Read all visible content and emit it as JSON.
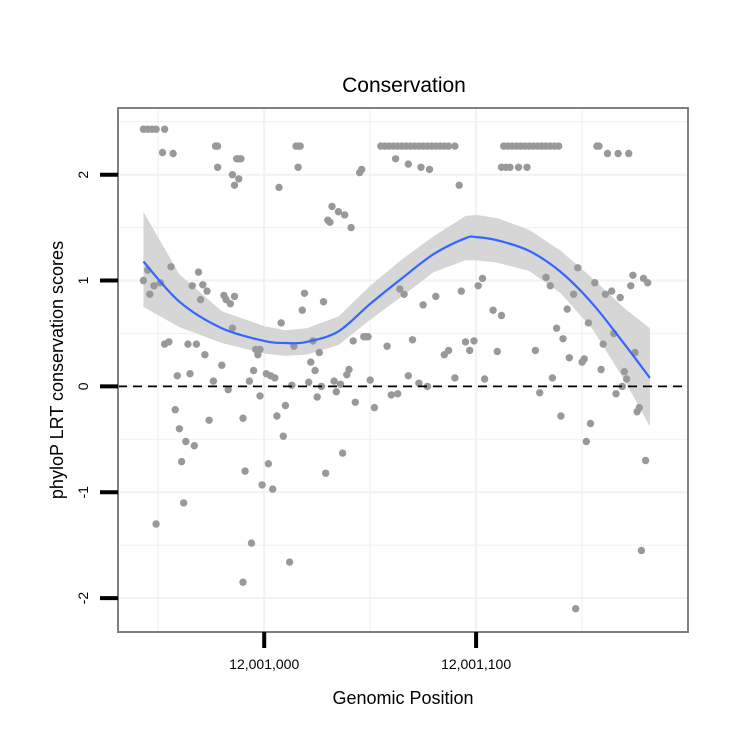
{
  "chart_data": {
    "type": "scatter",
    "title": "Conservation",
    "xlabel": "Genomic Position",
    "ylabel": "phyloP LRT conservation scores",
    "xlim": [
      12000931,
      12001200
    ],
    "ylim": [
      -2.32,
      2.63
    ],
    "x_ticks": [
      {
        "value": 12001000,
        "label": "12,001,000"
      },
      {
        "value": 12001100,
        "label": "12,001,100"
      }
    ],
    "y_ticks": [
      {
        "value": -2,
        "label": "-2"
      },
      {
        "value": -1,
        "label": "-1"
      },
      {
        "value": 0,
        "label": "0"
      },
      {
        "value": 1,
        "label": "1"
      },
      {
        "value": 2,
        "label": "2"
      }
    ],
    "grid": true,
    "reference_line": {
      "y": 0,
      "style": "dashed"
    },
    "colors": {
      "points": "#999999",
      "smooth_line": "#3366FF",
      "ribbon": "#d2d2d2",
      "panel_border": "#808080",
      "grid": "#f2f2f2"
    },
    "smooth": {
      "x": [
        12000943,
        12000960,
        12000980,
        12001000,
        12001010,
        12001020,
        12001035,
        12001050,
        12001065,
        12001080,
        12001095,
        12001100,
        12001110,
        12001125,
        12001140,
        12001155,
        12001170,
        12001182
      ],
      "y": [
        1.18,
        0.8,
        0.55,
        0.43,
        0.41,
        0.42,
        0.52,
        0.78,
        1.02,
        1.25,
        1.4,
        1.41,
        1.38,
        1.28,
        1.08,
        0.78,
        0.4,
        0.08
      ],
      "lower": [
        0.75,
        0.56,
        0.41,
        0.31,
        0.29,
        0.3,
        0.39,
        0.63,
        0.85,
        1.08,
        1.19,
        1.19,
        1.17,
        1.09,
        0.88,
        0.54,
        0.06,
        -0.38
      ],
      "upper": [
        1.65,
        1.06,
        0.71,
        0.57,
        0.53,
        0.55,
        0.66,
        0.95,
        1.2,
        1.42,
        1.61,
        1.62,
        1.59,
        1.48,
        1.28,
        1.02,
        0.74,
        0.55
      ]
    },
    "points": [
      [
        12000943,
        2.43
      ],
      [
        12000945,
        2.43
      ],
      [
        12000947,
        2.43
      ],
      [
        12000949,
        2.43
      ],
      [
        12000953,
        2.43
      ],
      [
        12000952,
        2.21
      ],
      [
        12000957,
        2.2
      ],
      [
        12000943,
        1.0
      ],
      [
        12000945,
        1.1
      ],
      [
        12000946,
        0.87
      ],
      [
        12000948,
        0.95
      ],
      [
        12000951,
        0.98
      ],
      [
        12000953,
        0.4
      ],
      [
        12000955,
        0.42
      ],
      [
        12000956,
        1.13
      ],
      [
        12000958,
        -0.22
      ],
      [
        12000959,
        0.1
      ],
      [
        12000960,
        -0.4
      ],
      [
        12000961,
        -0.71
      ],
      [
        12000962,
        -1.1
      ],
      [
        12000963,
        -0.52
      ],
      [
        12000949,
        -1.3
      ],
      [
        12000964,
        0.4
      ],
      [
        12000965,
        0.12
      ],
      [
        12000966,
        0.95
      ],
      [
        12000967,
        -0.56
      ],
      [
        12000968,
        0.4
      ],
      [
        12000969,
        1.08
      ],
      [
        12000970,
        0.82
      ],
      [
        12000971,
        0.96
      ],
      [
        12000972,
        0.3
      ],
      [
        12000973,
        0.9
      ],
      [
        12000974,
        -0.32
      ],
      [
        12000976,
        0.05
      ],
      [
        12000977,
        2.27
      ],
      [
        12000978,
        2.27
      ],
      [
        12000978,
        2.07
      ],
      [
        12000980,
        0.2
      ],
      [
        12000981,
        0.86
      ],
      [
        12000982,
        0.82
      ],
      [
        12000983,
        -0.03
      ],
      [
        12000984,
        0.78
      ],
      [
        12000985,
        0.55
      ],
      [
        12000986,
        0.85
      ],
      [
        12000987,
        2.15
      ],
      [
        12000988,
        2.15
      ],
      [
        12000989,
        2.15
      ],
      [
        12000985,
        2.0
      ],
      [
        12000986,
        1.9
      ],
      [
        12000988,
        1.96
      ],
      [
        12000990,
        -0.3
      ],
      [
        12000990,
        -1.85
      ],
      [
        12000991,
        -0.8
      ],
      [
        12000993,
        0.05
      ],
      [
        12000994,
        -1.48
      ],
      [
        12000995,
        0.15
      ],
      [
        12000996,
        0.35
      ],
      [
        12000997,
        0.3
      ],
      [
        12000998,
        -0.09
      ],
      [
        12000998,
        0.35
      ],
      [
        12000999,
        -0.93
      ],
      [
        12001001,
        0.12
      ],
      [
        12001002,
        -0.73
      ],
      [
        12001003,
        0.1
      ],
      [
        12001004,
        -0.97
      ],
      [
        12001005,
        0.08
      ],
      [
        12001006,
        -0.28
      ],
      [
        12001007,
        1.88
      ],
      [
        12001008,
        0.6
      ],
      [
        12001009,
        -0.47
      ],
      [
        12001010,
        -0.18
      ],
      [
        12001012,
        -1.66
      ],
      [
        12001013,
        0.01
      ],
      [
        12001014,
        0.38
      ],
      [
        12001015,
        2.27
      ],
      [
        12001016,
        2.27
      ],
      [
        12001017,
        2.27
      ],
      [
        12001016,
        2.07
      ],
      [
        12001018,
        0.72
      ],
      [
        12001019,
        0.88
      ],
      [
        12001021,
        0.04
      ],
      [
        12001022,
        0.23
      ],
      [
        12001023,
        0.43
      ],
      [
        12001024,
        0.15
      ],
      [
        12001025,
        -0.1
      ],
      [
        12001026,
        0.32
      ],
      [
        12001027,
        0.0
      ],
      [
        12001028,
        0.8
      ],
      [
        12001029,
        -0.82
      ],
      [
        12001030,
        1.57
      ],
      [
        12001031,
        1.55
      ],
      [
        12001032,
        1.7
      ],
      [
        12001033,
        0.05
      ],
      [
        12001034,
        -0.05
      ],
      [
        12001035,
        1.65
      ],
      [
        12001036,
        0.02
      ],
      [
        12001037,
        -0.63
      ],
      [
        12001038,
        1.62
      ],
      [
        12001039,
        0.11
      ],
      [
        12001040,
        0.16
      ],
      [
        12001041,
        1.5
      ],
      [
        12001042,
        0.43
      ],
      [
        12001043,
        -0.15
      ],
      [
        12001045,
        2.02
      ],
      [
        12001046,
        2.05
      ],
      [
        12001047,
        0.47
      ],
      [
        12001048,
        0.47
      ],
      [
        12001049,
        0.47
      ],
      [
        12001050,
        0.06
      ],
      [
        12001052,
        -0.2
      ],
      [
        12001055,
        2.27
      ],
      [
        12001057,
        2.27
      ],
      [
        12001059,
        2.27
      ],
      [
        12001061,
        2.27
      ],
      [
        12001063,
        2.27
      ],
      [
        12001065,
        2.27
      ],
      [
        12001067,
        2.27
      ],
      [
        12001069,
        2.27
      ],
      [
        12001071,
        2.27
      ],
      [
        12001073,
        2.27
      ],
      [
        12001075,
        2.27
      ],
      [
        12001077,
        2.27
      ],
      [
        12001079,
        2.27
      ],
      [
        12001081,
        2.27
      ],
      [
        12001083,
        2.27
      ],
      [
        12001085,
        2.27
      ],
      [
        12001087,
        2.27
      ],
      [
        12001090,
        2.27
      ],
      [
        12001062,
        2.15
      ],
      [
        12001068,
        2.1
      ],
      [
        12001074,
        2.07
      ],
      [
        12001078,
        2.05
      ],
      [
        12001092,
        1.9
      ],
      [
        12001058,
        0.38
      ],
      [
        12001060,
        -0.08
      ],
      [
        12001063,
        -0.07
      ],
      [
        12001064,
        0.92
      ],
      [
        12001066,
        0.87
      ],
      [
        12001068,
        0.1
      ],
      [
        12001070,
        0.44
      ],
      [
        12001073,
        0.03
      ],
      [
        12001075,
        0.77
      ],
      [
        12001077,
        0.0
      ],
      [
        12001081,
        0.85
      ],
      [
        12001085,
        0.3
      ],
      [
        12001087,
        0.34
      ],
      [
        12001090,
        0.08
      ],
      [
        12001093,
        0.9
      ],
      [
        12001095,
        0.42
      ],
      [
        12001097,
        0.34
      ],
      [
        12001099,
        0.43
      ],
      [
        12001101,
        0.95
      ],
      [
        12001103,
        1.02
      ],
      [
        12001104,
        0.07
      ],
      [
        12001108,
        0.72
      ],
      [
        12001110,
        0.33
      ],
      [
        12001112,
        0.67
      ],
      [
        12001113,
        2.27
      ],
      [
        12001115,
        2.27
      ],
      [
        12001117,
        2.27
      ],
      [
        12001119,
        2.27
      ],
      [
        12001121,
        2.27
      ],
      [
        12001123,
        2.27
      ],
      [
        12001125,
        2.27
      ],
      [
        12001127,
        2.27
      ],
      [
        12001129,
        2.27
      ],
      [
        12001131,
        2.27
      ],
      [
        12001133,
        2.27
      ],
      [
        12001135,
        2.27
      ],
      [
        12001137,
        2.27
      ],
      [
        12001139,
        2.27
      ],
      [
        12001112,
        2.07
      ],
      [
        12001114,
        2.07
      ],
      [
        12001116,
        2.07
      ],
      [
        12001120,
        2.07
      ],
      [
        12001124,
        2.07
      ],
      [
        12001128,
        0.34
      ],
      [
        12001130,
        -0.06
      ],
      [
        12001133,
        1.03
      ],
      [
        12001135,
        0.95
      ],
      [
        12001136,
        0.08
      ],
      [
        12001138,
        0.55
      ],
      [
        12001140,
        -0.28
      ],
      [
        12001141,
        0.45
      ],
      [
        12001143,
        0.73
      ],
      [
        12001144,
        0.27
      ],
      [
        12001146,
        0.87
      ],
      [
        12001147,
        -2.1
      ],
      [
        12001148,
        1.12
      ],
      [
        12001150,
        0.23
      ],
      [
        12001151,
        0.26
      ],
      [
        12001152,
        -0.52
      ],
      [
        12001153,
        0.6
      ],
      [
        12001154,
        -0.35
      ],
      [
        12001156,
        0.98
      ],
      [
        12001157,
        2.27
      ],
      [
        12001158,
        2.27
      ],
      [
        12001159,
        0.16
      ],
      [
        12001160,
        0.4
      ],
      [
        12001161,
        0.87
      ],
      [
        12001162,
        2.2
      ],
      [
        12001164,
        0.9
      ],
      [
        12001165,
        0.5
      ],
      [
        12001166,
        -0.07
      ],
      [
        12001167,
        2.2
      ],
      [
        12001168,
        0.84
      ],
      [
        12001169,
        0.0
      ],
      [
        12001170,
        0.14
      ],
      [
        12001171,
        0.07
      ],
      [
        12001172,
        2.2
      ],
      [
        12001173,
        0.95
      ],
      [
        12001174,
        1.05
      ],
      [
        12001175,
        0.32
      ],
      [
        12001176,
        -0.24
      ],
      [
        12001177,
        -0.2
      ],
      [
        12001178,
        -1.55
      ],
      [
        12001179,
        1.02
      ],
      [
        12001180,
        -0.7
      ],
      [
        12001181,
        0.98
      ]
    ]
  }
}
